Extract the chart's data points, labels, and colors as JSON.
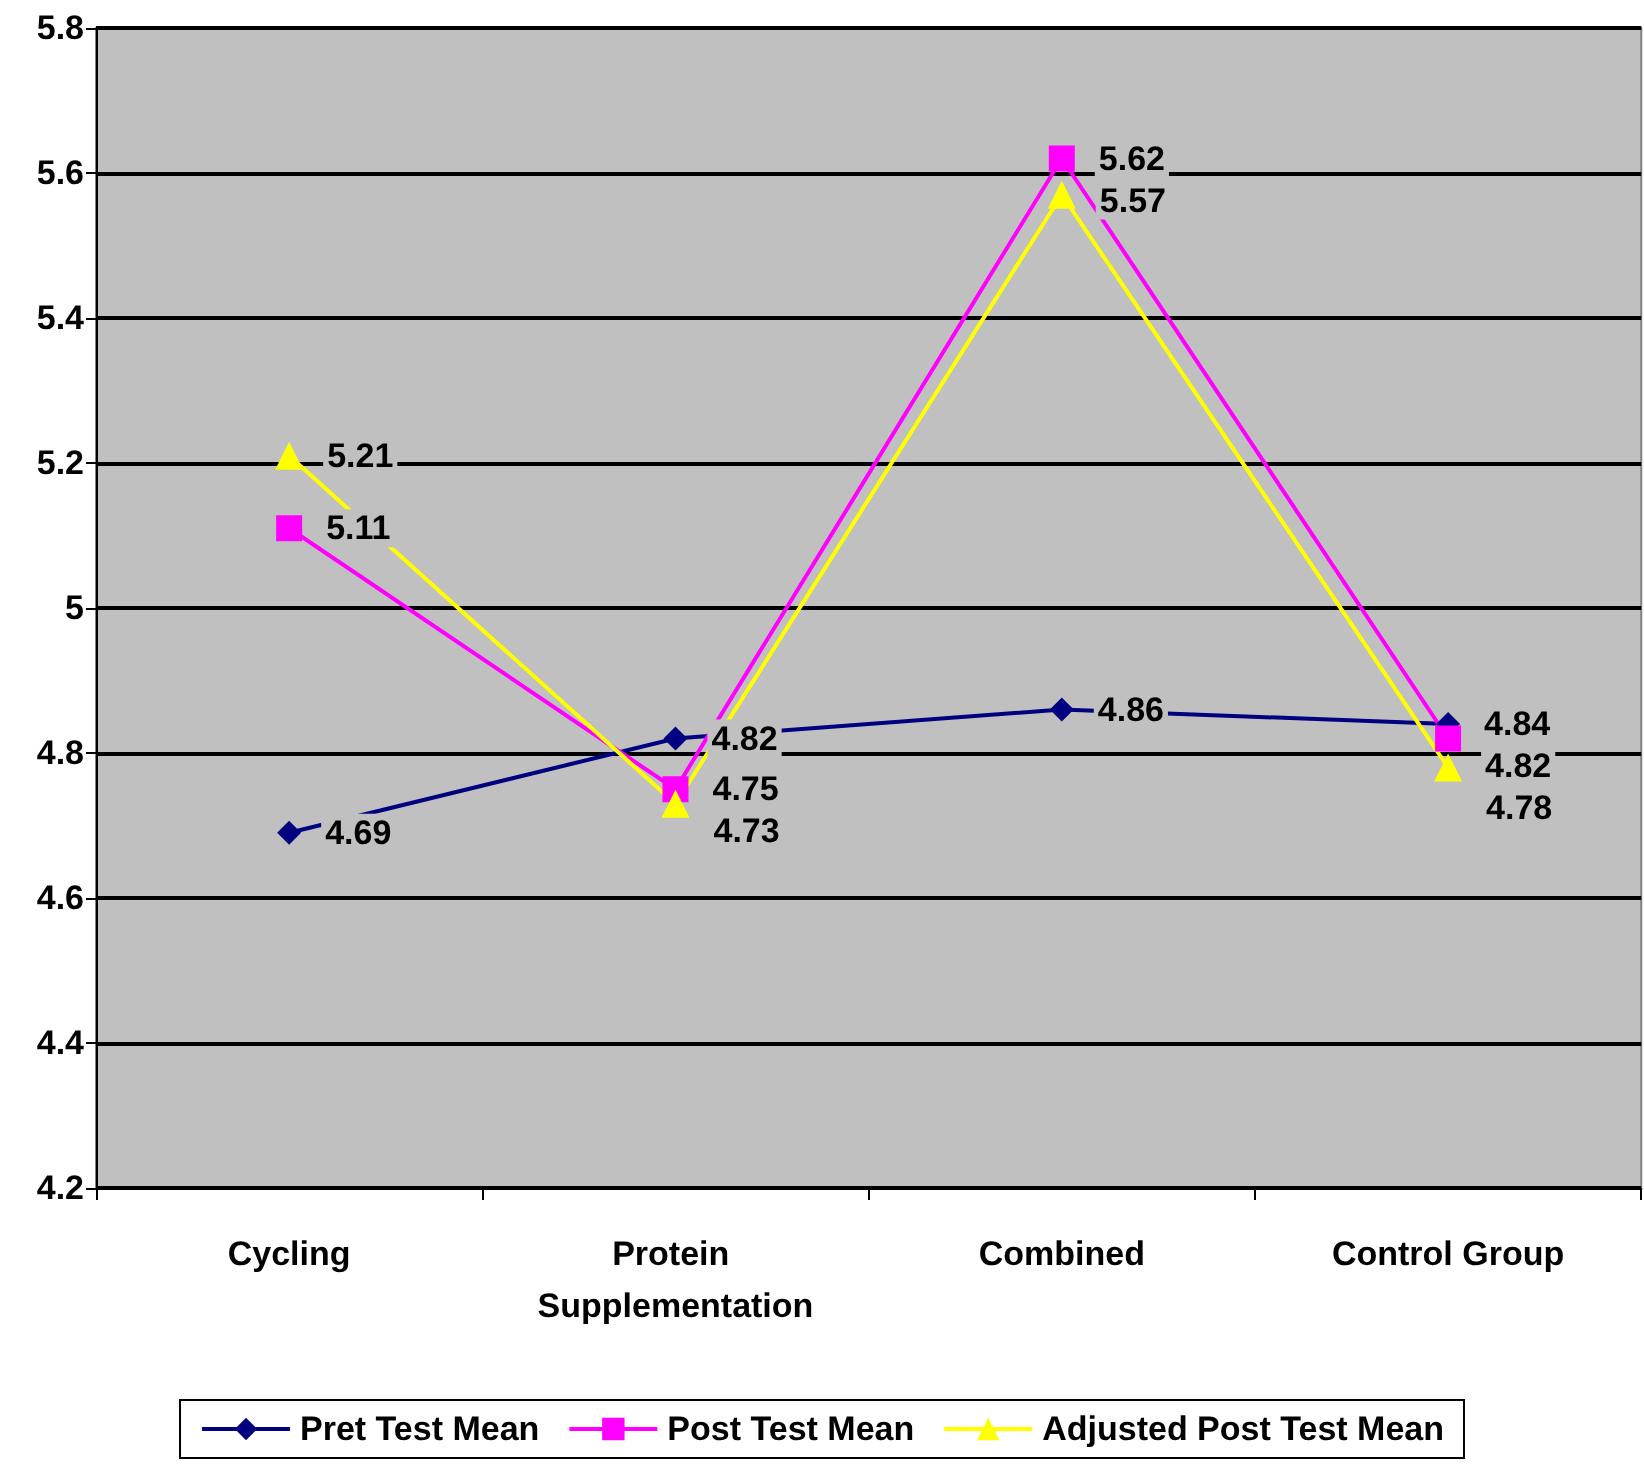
{
  "chart_data": {
    "type": "line",
    "categories": [
      "Cycling",
      "Protein Supplementation",
      "Combined",
      "Control Group"
    ],
    "series": [
      {
        "name": "Pret Test Mean",
        "color": "#000080",
        "marker": "diamond",
        "values": [
          4.69,
          4.82,
          4.86,
          4.84
        ]
      },
      {
        "name": "Post Test Mean",
        "color": "#ff00ff",
        "marker": "square",
        "values": [
          5.11,
          4.75,
          5.62,
          4.82
        ]
      },
      {
        "name": "Adjusted Post Test Mean",
        "color": "#ffff00",
        "marker": "triangle",
        "values": [
          5.21,
          4.73,
          5.57,
          4.78
        ]
      }
    ],
    "ylim": [
      4.2,
      5.8
    ],
    "yticks": [
      4.2,
      4.4,
      4.6,
      4.8,
      5,
      5.2,
      5.4,
      5.6,
      5.8
    ],
    "grid": "y",
    "legend": "bottom",
    "data_labels": true
  }
}
